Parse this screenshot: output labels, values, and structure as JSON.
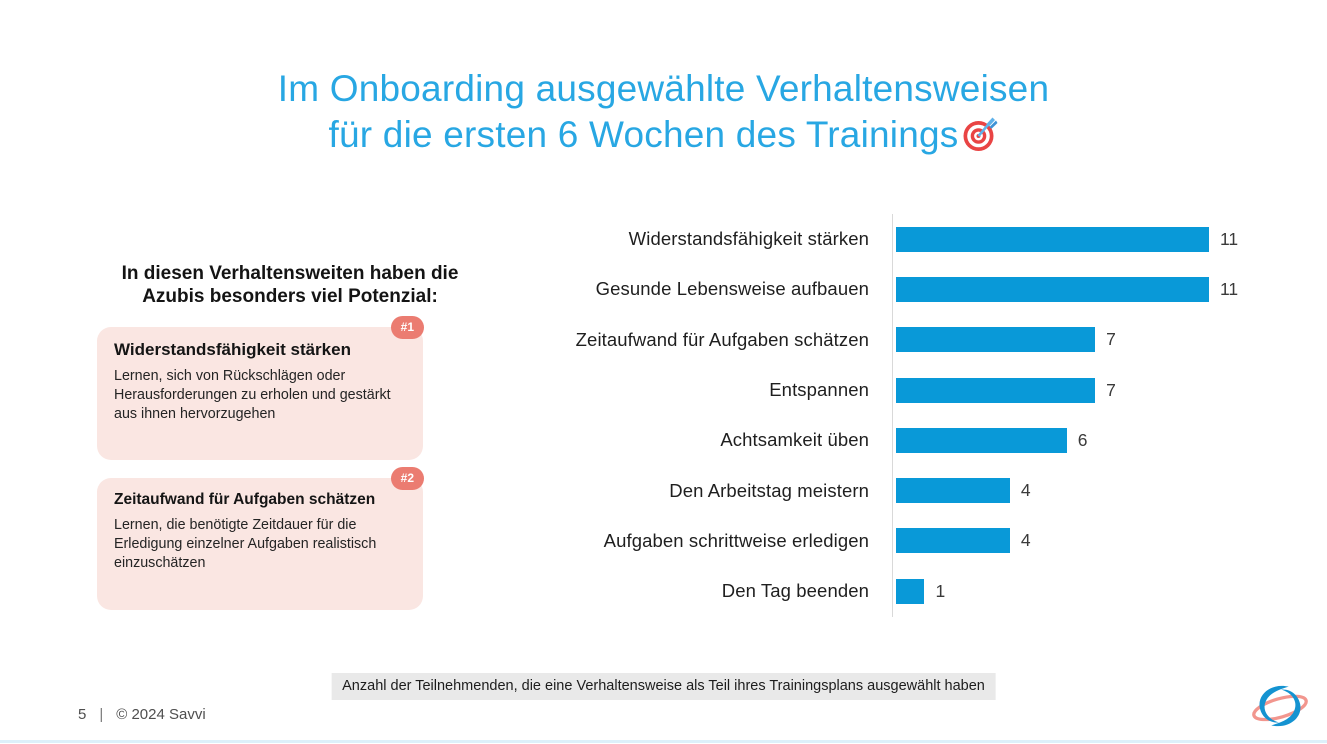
{
  "slide": {
    "title_line1": "Im Onboarding ausgewählte Verhaltensweisen",
    "title_line2": "für die ersten 6 Wochen des Trainings",
    "title_icon": "direct-hit-target-emoji",
    "accent_blue": "#28A7E3"
  },
  "left_panel": {
    "heading": "In diesen Verhaltensweiten haben die Azubis besonders viel Potenzial:",
    "cards": [
      {
        "badge": "#1",
        "title": "Widerstandsfähigkeit stärken",
        "body": "Lernen, sich von Rückschlägen oder Herausforderungen zu erholen und gestärkt aus ihnen hervorzugehen",
        "background": "#FAE6E2",
        "badge_color": "#EB7C71"
      },
      {
        "badge": "#2",
        "title": "Zeitaufwand für Aufgaben schätzen",
        "body": "Lernen, die benötigte Zeitdauer für die Erledigung einzelner Aufgaben realistisch einzuschätzen",
        "background": "#FAE6E2",
        "badge_color": "#EB7C71"
      }
    ]
  },
  "chart_data": {
    "type": "bar",
    "orientation": "horizontal",
    "title": "",
    "categories": [
      "Widerstandsfähigkeit stärken",
      "Gesunde Lebensweise aufbauen",
      "Zeitaufwand für Aufgaben schätzen",
      "Entspannen",
      "Achtsamkeit üben",
      "Den Arbeitstag meistern",
      "Aufgaben schrittweise erledigen",
      "Den Tag beenden"
    ],
    "values": [
      11,
      11,
      7,
      7,
      6,
      4,
      4,
      1
    ],
    "xlim": [
      0,
      11.6
    ],
    "bar_color": "#0999D8",
    "grid": false,
    "value_labels_shown": true,
    "caption": "Anzahl der Teilnehmenden, die eine Verhaltensweise als Teil ihres Trainingsplans ausgewählt haben"
  },
  "footer": {
    "page_number": "5",
    "separator": "|",
    "copyright": "© 2024 Savvi",
    "logo": "savvi-logo"
  }
}
